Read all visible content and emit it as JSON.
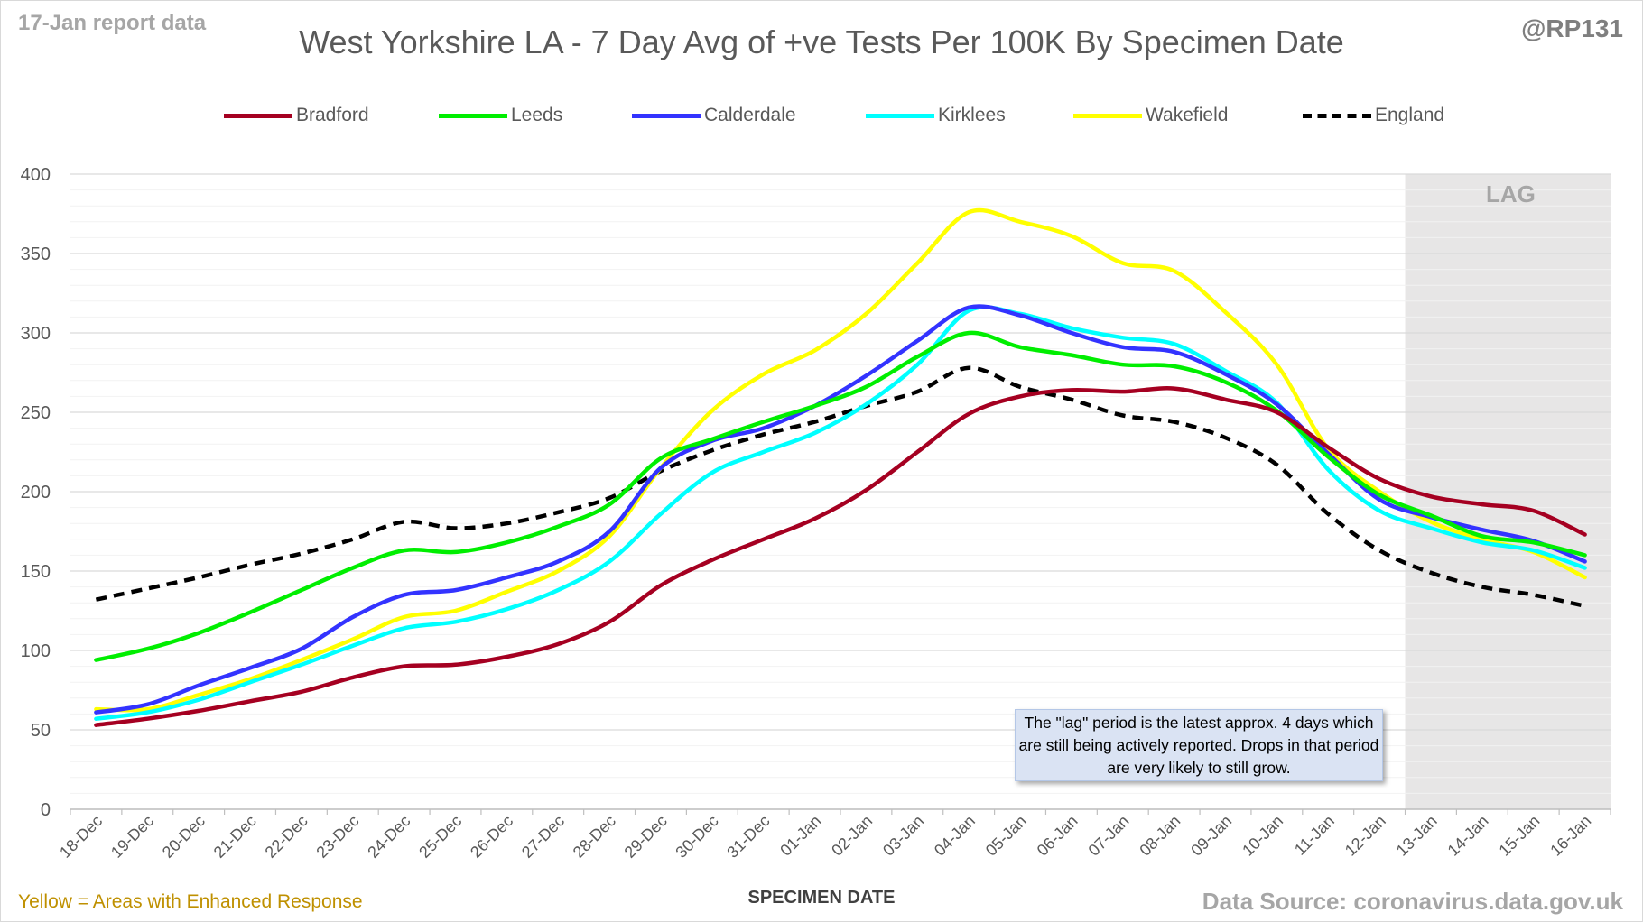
{
  "corner_left": "17-Jan report data",
  "corner_right": "@RP131",
  "footer_left": "Yellow = Areas with Enhanced Response",
  "footer_right": "Data Source: coronavirus.data.gov.uk",
  "lag_label": "LAG",
  "note": "The \"lag\" period is the latest approx. 4 days which are still being actively reported. Drops in that period are very likely to still grow.",
  "chart_data": {
    "type": "line",
    "title": "West Yorkshire LA - 7 Day Avg of +ve Tests Per 100K By Specimen Date",
    "xlabel": "SPECIMEN DATE",
    "ylabel": "",
    "ylim": [
      0,
      400
    ],
    "yticks": [
      0,
      50,
      100,
      150,
      200,
      250,
      300,
      350,
      400
    ],
    "grid": true,
    "legend_placement": "top",
    "lag_period": [
      "13-Jan",
      "16-Jan"
    ],
    "categories": [
      "18-Dec",
      "19-Dec",
      "20-Dec",
      "21-Dec",
      "22-Dec",
      "23-Dec",
      "24-Dec",
      "25-Dec",
      "26-Dec",
      "27-Dec",
      "28-Dec",
      "29-Dec",
      "30-Dec",
      "31-Dec",
      "01-Jan",
      "02-Jan",
      "03-Jan",
      "04-Jan",
      "05-Jan",
      "06-Jan",
      "07-Jan",
      "08-Jan",
      "09-Jan",
      "10-Jan",
      "11-Jan",
      "12-Jan",
      "13-Jan",
      "14-Jan",
      "15-Jan",
      "16-Jan"
    ],
    "series": [
      {
        "name": "Bradford",
        "color": "#a50021",
        "dashed": false,
        "values": [
          53,
          57,
          62,
          68,
          74,
          83,
          90,
          91,
          96,
          104,
          118,
          141,
          157,
          170,
          183,
          201,
          225,
          249,
          260,
          264,
          263,
          265,
          258,
          250,
          228,
          208,
          197,
          192,
          188,
          173
        ]
      },
      {
        "name": "Leeds",
        "color": "#00ee00",
        "dashed": false,
        "values": [
          94,
          101,
          111,
          124,
          138,
          152,
          163,
          162,
          168,
          178,
          192,
          221,
          233,
          244,
          254,
          266,
          285,
          300,
          291,
          286,
          280,
          279,
          269,
          251,
          222,
          198,
          185,
          172,
          168,
          160
        ]
      },
      {
        "name": "Calderdale",
        "color": "#3333ff",
        "dashed": false,
        "values": [
          61,
          66,
          78,
          89,
          101,
          121,
          135,
          138,
          146,
          156,
          175,
          215,
          232,
          240,
          254,
          273,
          295,
          316,
          311,
          300,
          291,
          288,
          274,
          255,
          224,
          195,
          184,
          176,
          169,
          156
        ]
      },
      {
        "name": "Kirklees",
        "color": "#00ffff",
        "dashed": false,
        "values": [
          57,
          61,
          69,
          80,
          91,
          103,
          114,
          118,
          126,
          138,
          156,
          186,
          212,
          225,
          237,
          255,
          280,
          314,
          312,
          303,
          297,
          293,
          276,
          256,
          214,
          188,
          177,
          168,
          163,
          152
        ]
      },
      {
        "name": "Wakefield",
        "color": "#ffff00",
        "dashed": false,
        "values": [
          63,
          63,
          72,
          82,
          94,
          107,
          121,
          125,
          137,
          150,
          172,
          215,
          251,
          274,
          289,
          312,
          344,
          376,
          370,
          361,
          344,
          339,
          313,
          280,
          227,
          200,
          181,
          170,
          162,
          146
        ]
      },
      {
        "name": "England",
        "color": "#000000",
        "dashed": true,
        "values": [
          132,
          139,
          146,
          154,
          161,
          170,
          181,
          177,
          180,
          187,
          196,
          213,
          226,
          236,
          244,
          254,
          263,
          278,
          266,
          258,
          248,
          244,
          234,
          217,
          186,
          163,
          149,
          140,
          135,
          128
        ]
      }
    ]
  }
}
